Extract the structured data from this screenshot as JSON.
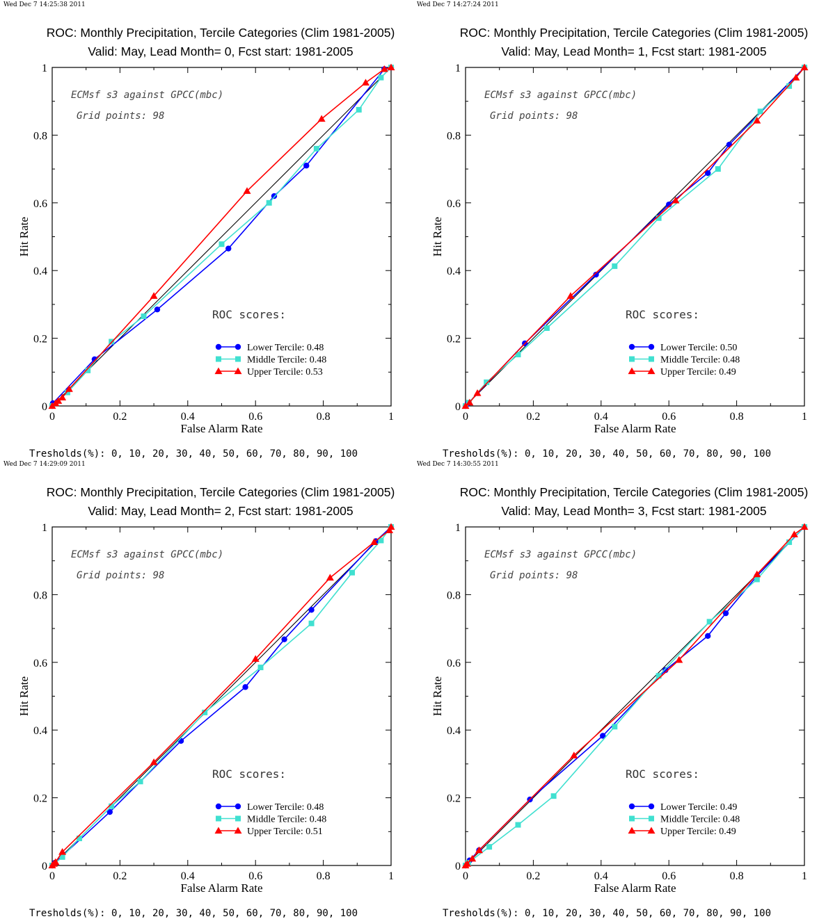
{
  "colors": {
    "lower": "#0000ff",
    "middle": "#40e0d0",
    "upper": "#ff0000",
    "diagonal": "#000000"
  },
  "chart_data": [
    {
      "type": "line",
      "timestamp": "Wed Dec  7 14:25:38 2011",
      "title": "ROC: Monthly Precipitation, Tercile Categories (Clim 1981-2005)",
      "subtitle": "Valid: May, Lead Month= 0, Fcst start: 1981-2005",
      "xlabel": "False Alarm Rate",
      "ylabel": "Hit Rate",
      "xlim": [
        0,
        1
      ],
      "ylim": [
        0,
        1
      ],
      "ticks": [
        "0",
        "0.2",
        "0.4",
        "0.6",
        "0.8",
        "1"
      ],
      "note1": "ECMsf s3 against GPCC(mbc)",
      "note2": "Grid points:   98",
      "scores_label": "ROC scores:",
      "thresholds": "Tresholds(%): 0, 10, 20, 30, 40, 50, 60, 70, 80, 90, 100",
      "series": [
        {
          "name": "Lower Tercile: 0.48",
          "key": "lower",
          "marker": "circle",
          "points": [
            [
              0,
              0
            ],
            [
              0.002,
              0.008
            ],
            [
              0.125,
              0.138
            ],
            [
              0.31,
              0.285
            ],
            [
              0.52,
              0.465
            ],
            [
              0.655,
              0.62
            ],
            [
              0.75,
              0.71
            ],
            [
              0.98,
              0.995
            ],
            [
              1,
              1
            ]
          ]
        },
        {
          "name": "Middle Tercile: 0.48",
          "key": "middle",
          "marker": "square",
          "points": [
            [
              0,
              0
            ],
            [
              0.045,
              0.04
            ],
            [
              0.105,
              0.105
            ],
            [
              0.175,
              0.19
            ],
            [
              0.27,
              0.265
            ],
            [
              0.5,
              0.478
            ],
            [
              0.64,
              0.6
            ],
            [
              0.78,
              0.76
            ],
            [
              0.905,
              0.875
            ],
            [
              0.97,
              0.97
            ],
            [
              1,
              1
            ]
          ]
        },
        {
          "name": "Upper Tercile: 0.53",
          "key": "upper",
          "marker": "triangle",
          "points": [
            [
              0,
              0
            ],
            [
              0.01,
              0.008
            ],
            [
              0.018,
              0.015
            ],
            [
              0.03,
              0.025
            ],
            [
              0.05,
              0.05
            ],
            [
              0.3,
              0.325
            ],
            [
              0.575,
              0.635
            ],
            [
              0.795,
              0.848
            ],
            [
              0.925,
              0.955
            ],
            [
              0.98,
              0.995
            ],
            [
              1,
              1
            ]
          ]
        }
      ]
    },
    {
      "type": "line",
      "timestamp": "Wed Dec  7 14:27:24 2011",
      "title": "ROC: Monthly Precipitation, Tercile Categories (Clim 1981-2005)",
      "subtitle": "Valid: May, Lead Month= 1, Fcst start: 1981-2005",
      "xlabel": "False Alarm Rate",
      "ylabel": "Hit Rate",
      "xlim": [
        0,
        1
      ],
      "ylim": [
        0,
        1
      ],
      "ticks": [
        "0",
        "0.2",
        "0.4",
        "0.6",
        "0.8",
        "1"
      ],
      "note1": "ECMsf s3 against GPCC(mbc)",
      "note2": "Grid points:   98",
      "scores_label": "ROC scores:",
      "thresholds": "Tresholds(%): 0, 10, 20, 30, 40, 50, 60, 70, 80, 90, 100",
      "series": [
        {
          "name": "Lower Tercile: 0.50",
          "key": "lower",
          "marker": "circle",
          "points": [
            [
              0,
              0
            ],
            [
              0.005,
              0.005
            ],
            [
              0.175,
              0.185
            ],
            [
              0.385,
              0.388
            ],
            [
              0.6,
              0.595
            ],
            [
              0.715,
              0.688
            ],
            [
              0.778,
              0.772
            ],
            [
              1,
              1
            ]
          ]
        },
        {
          "name": "Middle Tercile: 0.48",
          "key": "middle",
          "marker": "square",
          "points": [
            [
              0,
              0
            ],
            [
              0.01,
              0.01
            ],
            [
              0.062,
              0.07
            ],
            [
              0.155,
              0.152
            ],
            [
              0.24,
              0.23
            ],
            [
              0.44,
              0.413
            ],
            [
              0.57,
              0.555
            ],
            [
              0.745,
              0.7
            ],
            [
              0.87,
              0.87
            ],
            [
              0.955,
              0.945
            ],
            [
              1,
              1
            ]
          ]
        },
        {
          "name": "Upper Tercile: 0.49",
          "key": "upper",
          "marker": "triangle",
          "points": [
            [
              0,
              0
            ],
            [
              0.012,
              0.01
            ],
            [
              0.035,
              0.038
            ],
            [
              0.31,
              0.325
            ],
            [
              0.62,
              0.607
            ],
            [
              0.86,
              0.843
            ],
            [
              0.975,
              0.97
            ],
            [
              1,
              1
            ]
          ]
        }
      ]
    },
    {
      "type": "line",
      "timestamp": "Wed Dec  7 14:29:09 2011",
      "title": "ROC: Monthly Precipitation, Tercile Categories (Clim 1981-2005)",
      "subtitle": "Valid: May, Lead Month= 2, Fcst start: 1981-2005",
      "xlabel": "False Alarm Rate",
      "ylabel": "Hit Rate",
      "xlim": [
        0,
        1
      ],
      "ylim": [
        0,
        1
      ],
      "ticks": [
        "0",
        "0.2",
        "0.4",
        "0.6",
        "0.8",
        "1"
      ],
      "note1": "ECMsf s3 against GPCC(mbc)",
      "note2": "Grid points:   98",
      "scores_label": "ROC scores:",
      "thresholds": "Tresholds(%): 0, 10, 20, 30, 40, 50, 60, 70, 80, 90, 100",
      "series": [
        {
          "name": "Lower Tercile: 0.48",
          "key": "lower",
          "marker": "circle",
          "points": [
            [
              0,
              0
            ],
            [
              0.008,
              0.008
            ],
            [
              0.17,
              0.158
            ],
            [
              0.38,
              0.368
            ],
            [
              0.57,
              0.527
            ],
            [
              0.685,
              0.668
            ],
            [
              0.765,
              0.755
            ],
            [
              0.955,
              0.958
            ],
            [
              1,
              1
            ]
          ]
        },
        {
          "name": "Middle Tercile: 0.48",
          "key": "middle",
          "marker": "square",
          "points": [
            [
              0,
              0
            ],
            [
              0.03,
              0.025
            ],
            [
              0.08,
              0.08
            ],
            [
              0.175,
              0.175
            ],
            [
              0.26,
              0.248
            ],
            [
              0.45,
              0.452
            ],
            [
              0.615,
              0.585
            ],
            [
              0.765,
              0.715
            ],
            [
              0.885,
              0.865
            ],
            [
              0.97,
              0.96
            ],
            [
              1,
              1
            ]
          ]
        },
        {
          "name": "Upper Tercile: 0.51",
          "key": "upper",
          "marker": "triangle",
          "points": [
            [
              0,
              0
            ],
            [
              0.005,
              0.005
            ],
            [
              0.01,
              0.01
            ],
            [
              0.03,
              0.04
            ],
            [
              0.3,
              0.305
            ],
            [
              0.6,
              0.61
            ],
            [
              0.82,
              0.85
            ],
            [
              0.95,
              0.955
            ],
            [
              0.995,
              0.99
            ],
            [
              1,
              1
            ]
          ]
        }
      ]
    },
    {
      "type": "line",
      "timestamp": "Wed Dec  7 14:30:55 2011",
      "title": "ROC: Monthly Precipitation, Tercile Categories (Clim 1981-2005)",
      "subtitle": "Valid: May, Lead Month= 3, Fcst start: 1981-2005",
      "xlabel": "False Alarm Rate",
      "ylabel": "Hit Rate",
      "xlim": [
        0,
        1
      ],
      "ylim": [
        0,
        1
      ],
      "ticks": [
        "0",
        "0.2",
        "0.4",
        "0.6",
        "0.8",
        "1"
      ],
      "note1": "ECMsf s3 against GPCC(mbc)",
      "note2": "Grid points:   98",
      "scores_label": "ROC scores:",
      "thresholds": "Tresholds(%): 0, 10, 20, 30, 40, 50, 60, 70, 80, 90, 100",
      "series": [
        {
          "name": "Lower Tercile: 0.49",
          "key": "lower",
          "marker": "circle",
          "points": [
            [
              0,
              0
            ],
            [
              0.012,
              0.015
            ],
            [
              0.04,
              0.045
            ],
            [
              0.19,
              0.195
            ],
            [
              0.405,
              0.383
            ],
            [
              0.59,
              0.577
            ],
            [
              0.715,
              0.678
            ],
            [
              0.768,
              0.745
            ],
            [
              0.86,
              0.855
            ],
            [
              1,
              1
            ]
          ]
        },
        {
          "name": "Middle Tercile: 0.48",
          "key": "middle",
          "marker": "square",
          "points": [
            [
              0,
              0
            ],
            [
              0.008,
              0.008
            ],
            [
              0.07,
              0.055
            ],
            [
              0.155,
              0.12
            ],
            [
              0.26,
              0.205
            ],
            [
              0.44,
              0.41
            ],
            [
              0.57,
              0.56
            ],
            [
              0.72,
              0.72
            ],
            [
              0.86,
              0.845
            ],
            [
              0.955,
              0.955
            ],
            [
              1,
              1
            ]
          ]
        },
        {
          "name": "Upper Tercile: 0.49",
          "key": "upper",
          "marker": "triangle",
          "points": [
            [
              0,
              0
            ],
            [
              0.005,
              0.005
            ],
            [
              0.02,
              0.02
            ],
            [
              0.04,
              0.045
            ],
            [
              0.32,
              0.325
            ],
            [
              0.63,
              0.607
            ],
            [
              0.86,
              0.86
            ],
            [
              0.97,
              0.978
            ],
            [
              1,
              1
            ]
          ]
        }
      ]
    }
  ]
}
